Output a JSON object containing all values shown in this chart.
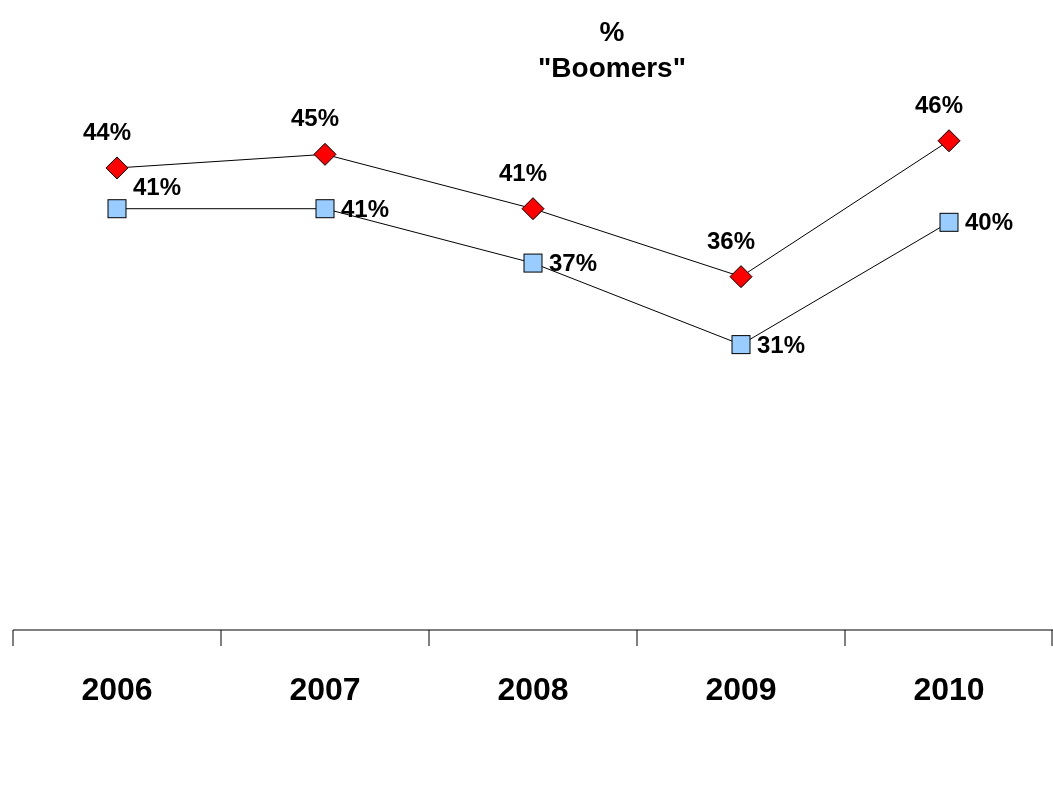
{
  "chart_data": {
    "type": "line",
    "title": "%\n\"Boomers\"",
    "categories": [
      "2006",
      "2007",
      "2008",
      "2009",
      "2010"
    ],
    "series": [
      {
        "color": "#ff0000",
        "marker": "diamond",
        "values": [
          44,
          45,
          41,
          36,
          46
        ],
        "value_labels": [
          "44%",
          "45%",
          "41%",
          "36%",
          "46%"
        ]
      },
      {
        "color": "#99ccff",
        "marker": "square",
        "values": [
          41,
          41,
          37,
          31,
          40
        ],
        "value_labels": [
          "41%",
          "41%",
          "37%",
          "31%",
          "40%"
        ]
      }
    ]
  }
}
